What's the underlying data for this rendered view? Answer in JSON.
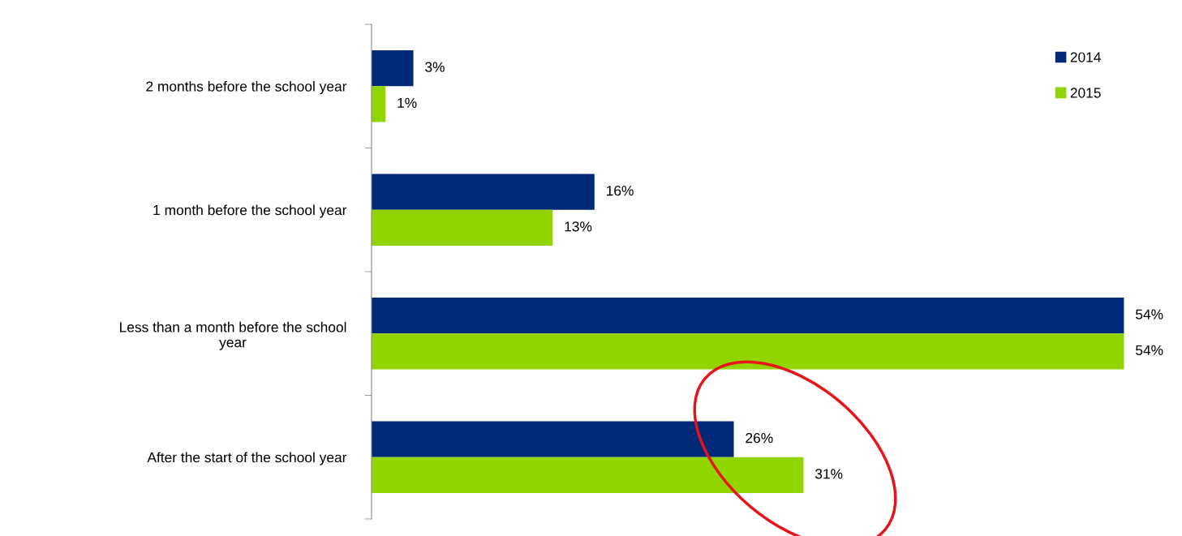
{
  "chart_data": {
    "type": "bar",
    "orientation": "horizontal",
    "categories": [
      "2 months before the school year",
      "1 month before the school year",
      "Less than a month before the school year",
      "After the start of the school year"
    ],
    "series": [
      {
        "name": "2014",
        "color": "#002a77",
        "values": [
          3,
          16,
          54,
          26
        ],
        "value_labels": [
          "3%",
          "16%",
          "54%",
          "26%"
        ]
      },
      {
        "name": "2015",
        "color": "#92d400",
        "values": [
          1,
          13,
          54,
          31
        ],
        "value_labels": [
          "1%",
          "13%",
          "54%",
          "31%"
        ]
      }
    ],
    "legend": "top right"
  }
}
